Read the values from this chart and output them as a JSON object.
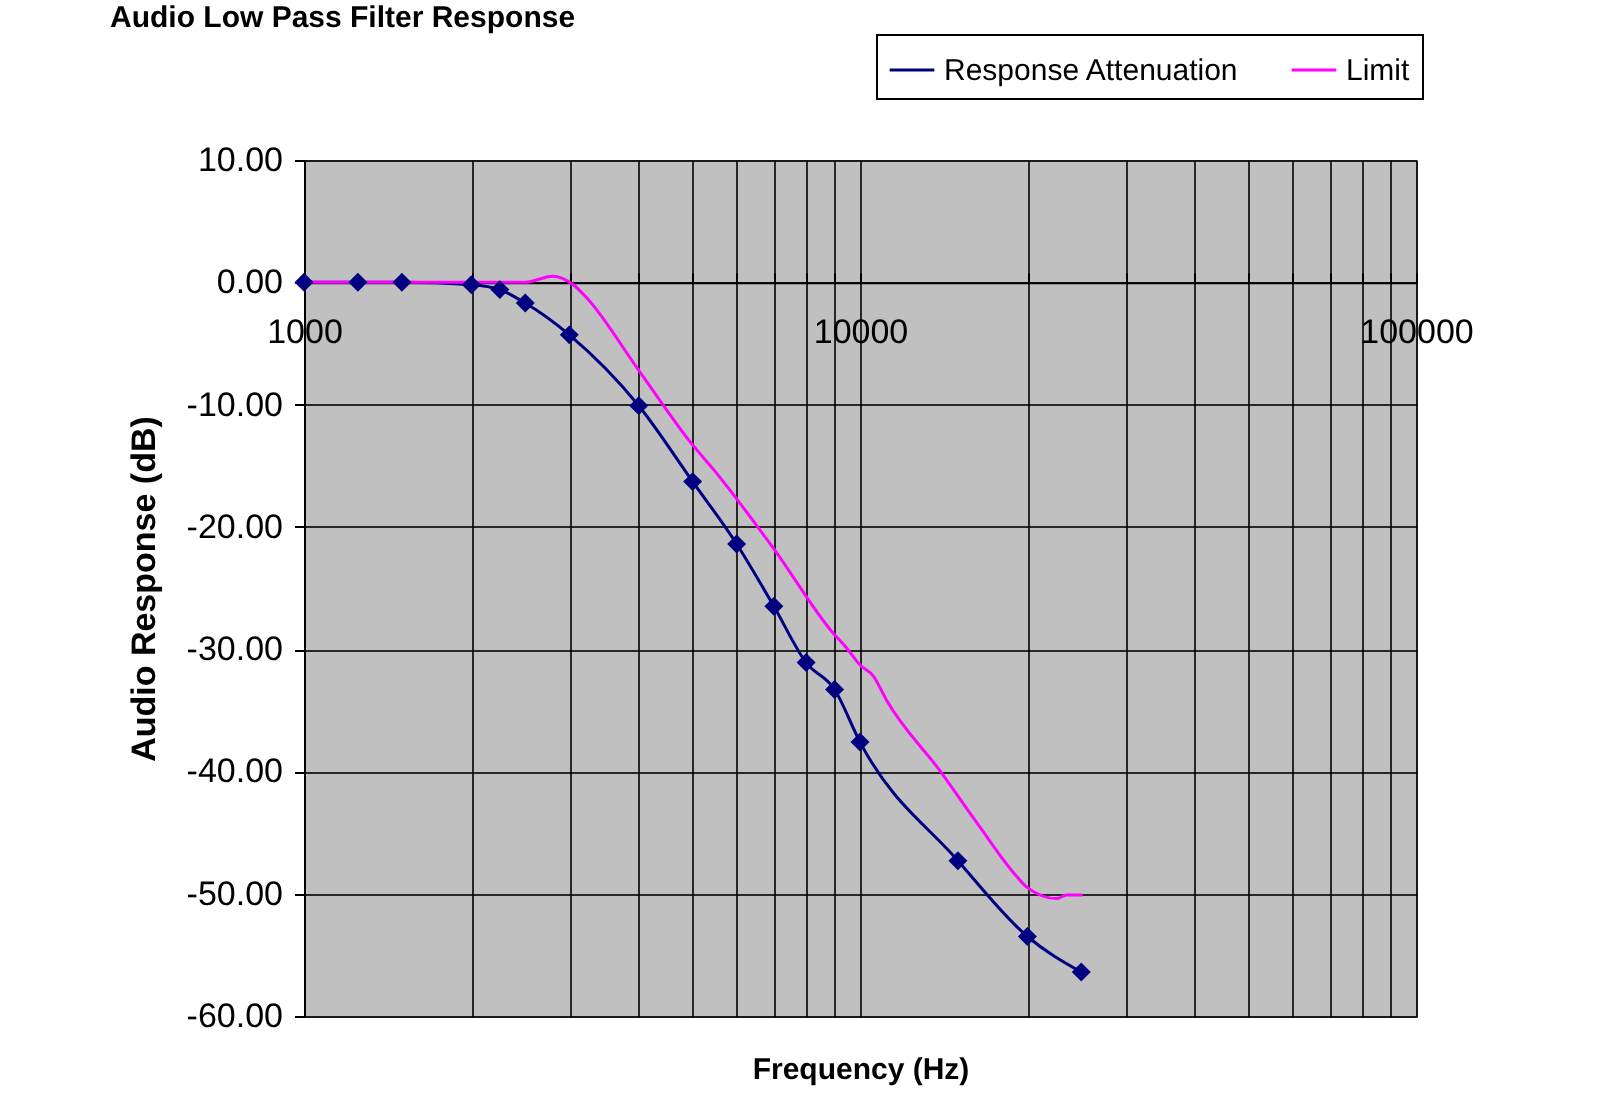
{
  "chart_data": {
    "type": "line",
    "title": "Audio Low Pass Filter Response",
    "xlabel": "Frequency (Hz)",
    "ylabel": "Audio Response (dB)",
    "log": "x",
    "grid": true,
    "legend": "top right",
    "xlim": [
      1000,
      100000
    ],
    "xticks": [
      1000,
      {
        "value": 2000,
        "label": null
      },
      {
        "value": 3000,
        "label": null
      },
      {
        "value": 4000,
        "label": null
      },
      {
        "value": 5000,
        "label": null
      },
      {
        "value": 6000,
        "label": null
      },
      {
        "value": 7000,
        "label": null
      },
      {
        "value": 8000,
        "label": null
      },
      {
        "value": 9000,
        "label": null
      },
      10000,
      {
        "value": 20000,
        "label": null
      },
      {
        "value": 30000,
        "label": null
      },
      {
        "value": 40000,
        "label": null
      },
      {
        "value": 50000,
        "label": null
      },
      {
        "value": 60000,
        "label": null
      },
      {
        "value": 70000,
        "label": null
      },
      {
        "value": 80000,
        "label": null
      },
      {
        "value": 90000,
        "label": null
      },
      100000
    ],
    "ylim": [
      -60,
      10
    ],
    "yticks": [
      {
        "value": 10,
        "label": "10.00"
      },
      {
        "value": 0,
        "label": "0.00"
      },
      {
        "value": -10,
        "label": "-10.00"
      },
      {
        "value": -20,
        "label": "-20.00"
      },
      {
        "value": -30,
        "label": "-30.00"
      },
      {
        "value": -40,
        "label": "-40.00"
      },
      {
        "value": -50,
        "label": "-50.00"
      },
      {
        "value": -60,
        "label": "-60.00"
      }
    ],
    "series": [
      {
        "name": "Response Attenuation",
        "color": "#000080",
        "marker": "diamond",
        "x": [
          1000,
          1250,
          1500,
          2000,
          2250,
          2500,
          3000,
          4000,
          5000,
          6000,
          7000,
          8000,
          9000,
          10000,
          15000,
          20000,
          25000
        ],
        "values": [
          0,
          0,
          0,
          -0.2,
          -0.6,
          -1.7,
          -4.3,
          -10.1,
          -16.3,
          -21.4,
          -26.5,
          -31.1,
          -33.3,
          -37.6,
          -47.3,
          -53.5,
          -56.4
        ]
      },
      {
        "name": "Limit",
        "color": "#ff00ff",
        "marker": "none",
        "x": [
          1000,
          2000,
          2500,
          2800,
          3050,
          3200,
          4000,
          5000,
          5450,
          7000,
          8950,
          9460,
          10000,
          10570,
          11170,
          13900,
          16400,
          18900,
          20000,
          22600,
          23500,
          25000
        ],
        "values": [
          0,
          0,
          0,
          0.5,
          -0.2,
          -1.1,
          -7.2,
          -13.3,
          -15.3,
          -21.8,
          -28.7,
          -29.9,
          -31.3,
          -32.2,
          -34.2,
          -39.9,
          -44.5,
          -48.3,
          -49.5,
          -50.4,
          -50.1,
          -50.1
        ]
      }
    ]
  }
}
